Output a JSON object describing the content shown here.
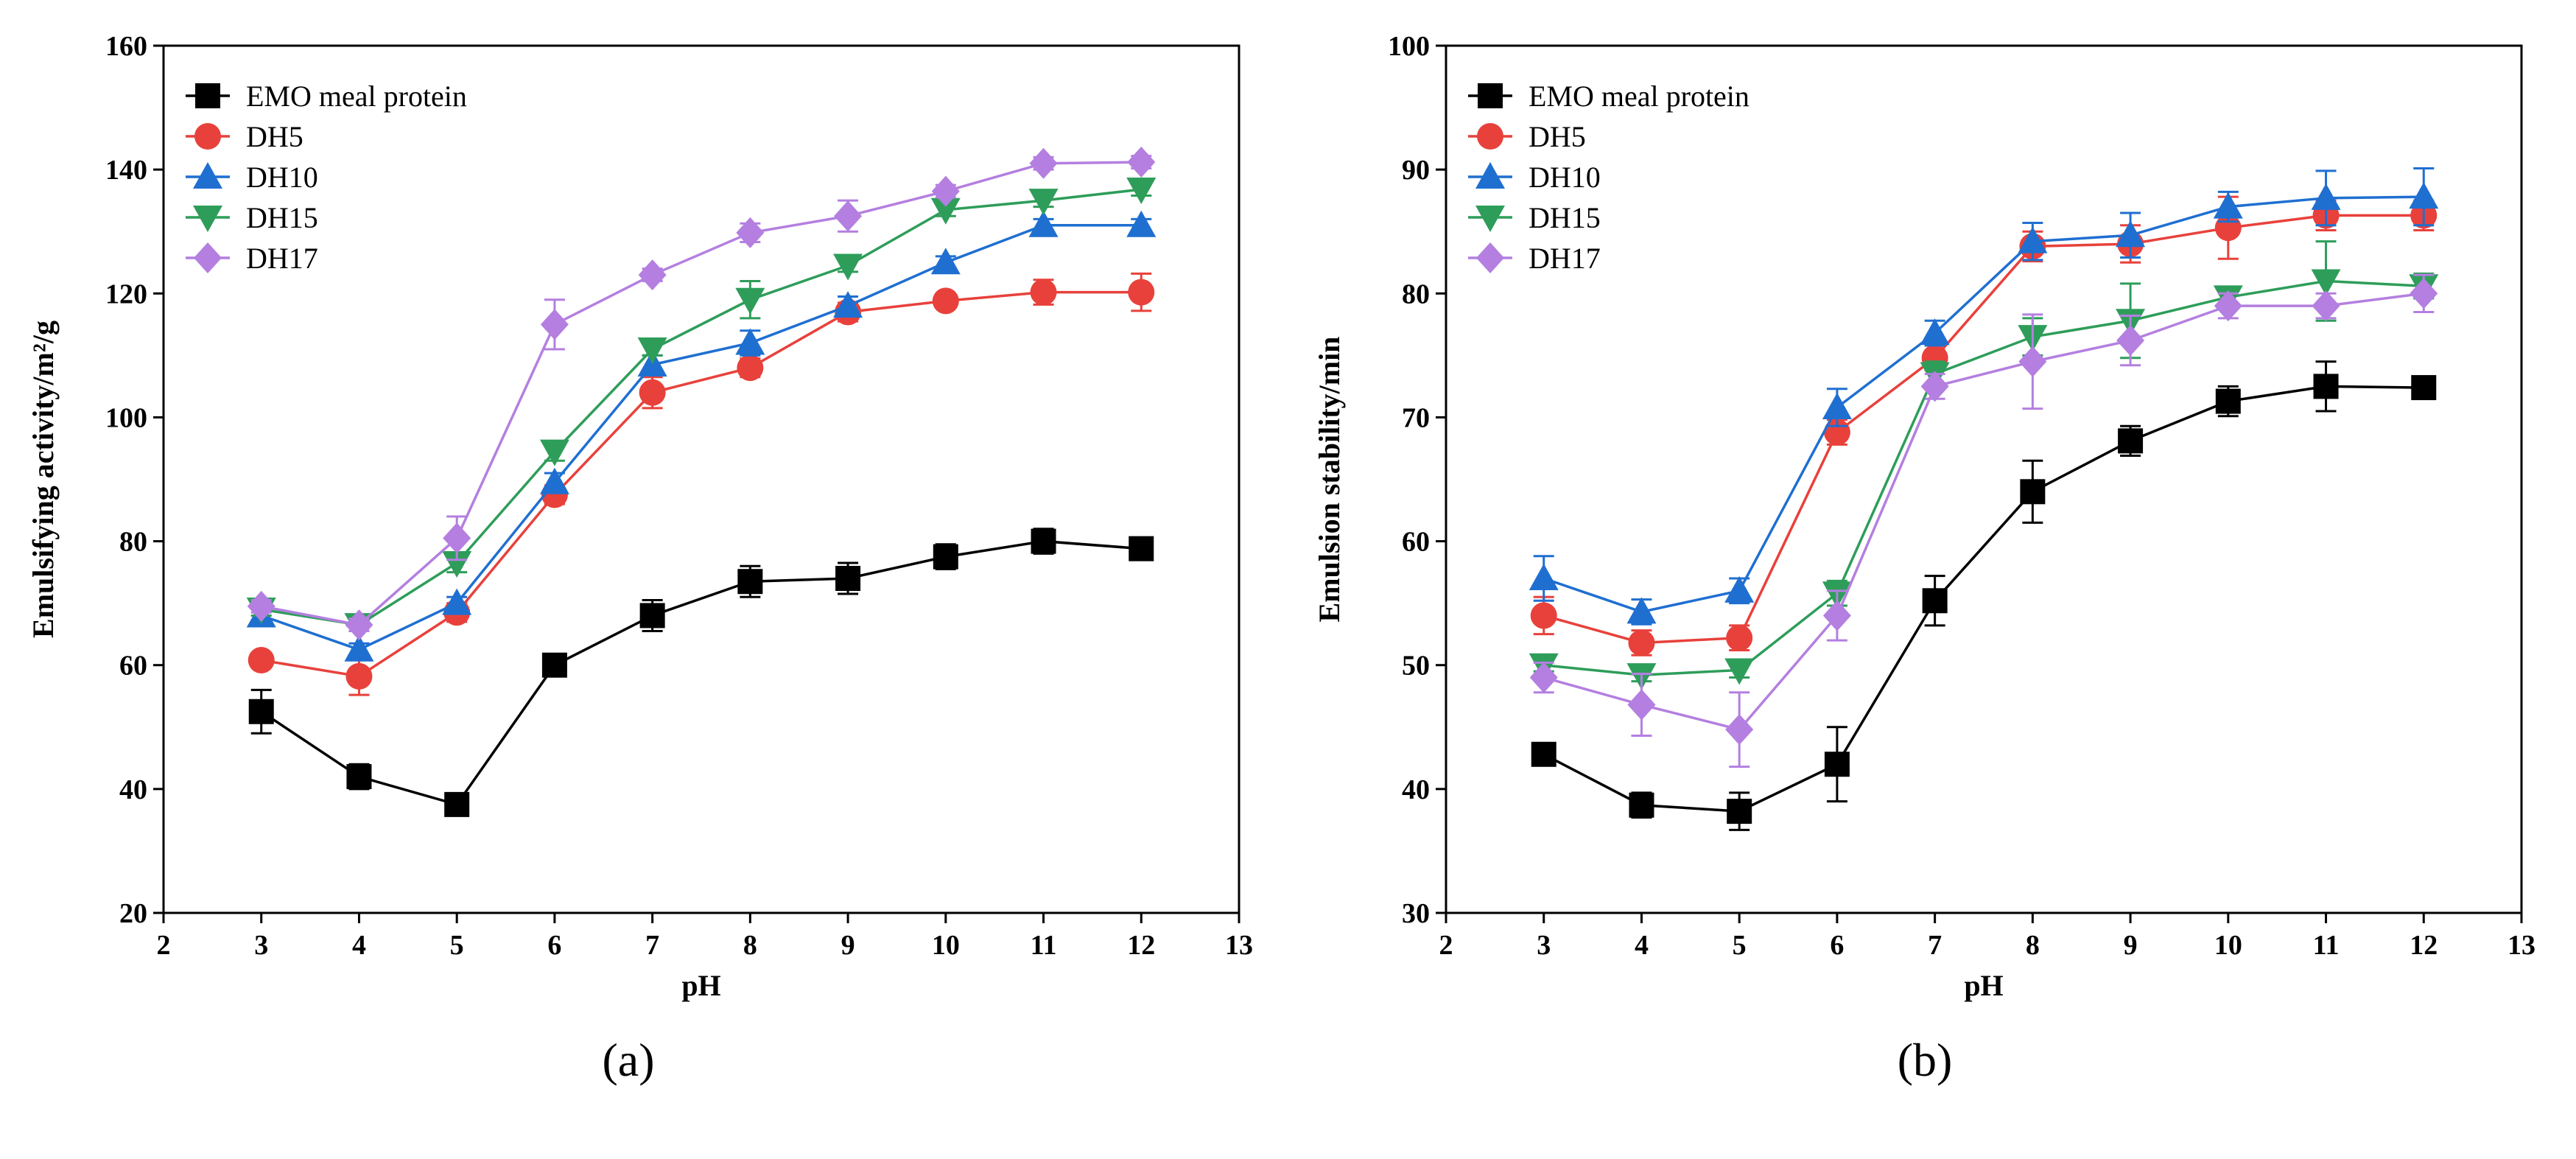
{
  "chart_data": [
    {
      "panel": "a",
      "type": "line",
      "caption": "(a)",
      "xlabel": "pH",
      "ylabel": "Emulsifying activity/m²/g",
      "xlim": [
        2,
        13
      ],
      "ylim": [
        20,
        160
      ],
      "xticks": [
        "2",
        "3",
        "4",
        "5",
        "6",
        "7",
        "8",
        "9",
        "10",
        "11",
        "12",
        "13"
      ],
      "yticks": [
        "20",
        "40",
        "60",
        "80",
        "100",
        "120",
        "140",
        "160"
      ],
      "legend_position": "top-left",
      "x": [
        3,
        4,
        5,
        6,
        7,
        8,
        9,
        10,
        11,
        12
      ],
      "series": [
        {
          "name": "EMO meal protein",
          "color": "#000000",
          "marker": "square",
          "values": [
            52.5,
            42,
            37.5,
            60,
            68,
            73.5,
            74,
            77.5,
            80,
            78.8
          ],
          "errors": [
            3.5,
            2,
            1,
            1.5,
            2.5,
            2.5,
            2.5,
            2,
            2,
            1.5
          ]
        },
        {
          "name": "DH5",
          "color": "#e8413b",
          "marker": "circle",
          "values": [
            60.8,
            58.2,
            68.5,
            87.5,
            104,
            108,
            117,
            118.8,
            120.2,
            120.2
          ],
          "errors": [
            1,
            3,
            1.5,
            1.5,
            2.5,
            1.5,
            1.5,
            1,
            2,
            3
          ]
        },
        {
          "name": "DH10",
          "color": "#1f6fd1",
          "marker": "triangle-up",
          "values": [
            68,
            62.5,
            70,
            89.5,
            108.5,
            112,
            118,
            125,
            131,
            131
          ],
          "errors": [
            1,
            1,
            1,
            1.5,
            1.5,
            2,
            1.5,
            1,
            1,
            1
          ]
        },
        {
          "name": "DH15",
          "color": "#2e9d5a",
          "marker": "triangle-down",
          "values": [
            69,
            66.5,
            76.5,
            94.5,
            111,
            119,
            124.5,
            133.5,
            135,
            136.8
          ],
          "errors": [
            1,
            1,
            1.5,
            1.5,
            1,
            3,
            1,
            1,
            1,
            1
          ]
        },
        {
          "name": "DH17",
          "color": "#b47fe0",
          "marker": "diamond",
          "values": [
            69.5,
            66.5,
            80.5,
            115,
            123,
            129.8,
            132.5,
            136.5,
            141,
            141.2
          ],
          "errors": [
            1,
            1,
            3.5,
            4,
            1,
            1.5,
            2.5,
            1,
            1,
            1
          ]
        }
      ]
    },
    {
      "panel": "b",
      "type": "line",
      "caption": "(b)",
      "xlabel": "pH",
      "ylabel": "Emulsion stability/min",
      "xlim": [
        2,
        13
      ],
      "ylim": [
        30,
        100
      ],
      "xticks": [
        "2",
        "3",
        "4",
        "5",
        "6",
        "7",
        "8",
        "9",
        "10",
        "11",
        "12",
        "13"
      ],
      "yticks": [
        "30",
        "40",
        "50",
        "60",
        "70",
        "80",
        "90",
        "100"
      ],
      "legend_position": "top-left",
      "x": [
        3,
        4,
        5,
        6,
        7,
        8,
        9,
        10,
        11,
        12
      ],
      "series": [
        {
          "name": "EMO meal protein",
          "color": "#000000",
          "marker": "square",
          "values": [
            42.8,
            38.7,
            38.2,
            42,
            55.2,
            64,
            68.1,
            71.3,
            72.5,
            72.4
          ],
          "errors": [
            0.7,
            1,
            1.5,
            3,
            2,
            2.5,
            1.2,
            1.2,
            2,
            0.8
          ]
        },
        {
          "name": "DH5",
          "color": "#e8413b",
          "marker": "circle",
          "values": [
            54,
            51.8,
            52.2,
            68.8,
            74.8,
            83.8,
            84,
            85.3,
            86.3,
            86.3
          ],
          "errors": [
            1.5,
            1,
            1,
            1,
            1,
            1.2,
            1.5,
            2.5,
            1.2,
            1.2
          ]
        },
        {
          "name": "DH10",
          "color": "#1f6fd1",
          "marker": "triangle-up",
          "values": [
            57,
            54.3,
            56,
            70.8,
            76.8,
            84.2,
            84.7,
            87,
            87.7,
            87.8
          ],
          "errors": [
            1.8,
            1,
            1,
            1.5,
            1,
            1.5,
            1.8,
            1.2,
            2.2,
            2.3
          ]
        },
        {
          "name": "DH15",
          "color": "#2e9d5a",
          "marker": "triangle-down",
          "values": [
            50,
            49.2,
            49.6,
            55.8,
            73.5,
            76.5,
            77.8,
            79.7,
            81,
            80.6
          ],
          "errors": [
            0.5,
            0.5,
            0.6,
            1,
            1,
            1.5,
            3,
            0.8,
            3.2,
            1
          ]
        },
        {
          "name": "DH17",
          "color": "#b47fe0",
          "marker": "diamond",
          "values": [
            49,
            46.8,
            44.8,
            54,
            72.5,
            74.5,
            76.2,
            79,
            79,
            80
          ],
          "errors": [
            1.2,
            2.5,
            3,
            2,
            1,
            3.8,
            2,
            1,
            1,
            1.5
          ]
        }
      ]
    }
  ]
}
